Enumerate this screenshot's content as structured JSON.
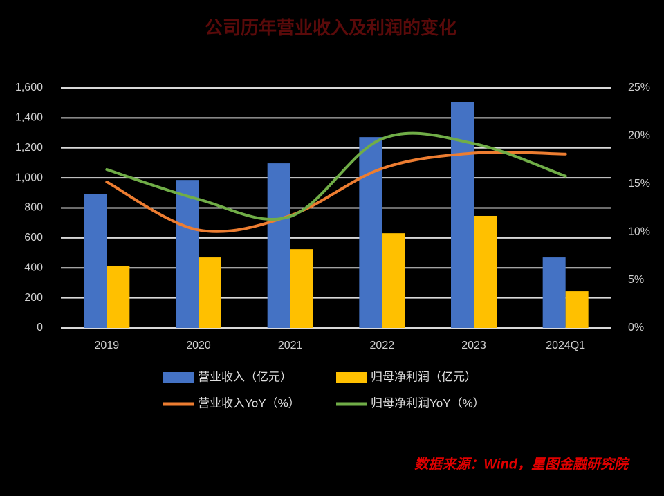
{
  "chart_data": {
    "type": "bar-line",
    "title": "公司历年营业收入及利润的变化",
    "source": "数据来源：Wind，星图金融研究院",
    "categories": [
      "2019",
      "2020",
      "2021",
      "2022",
      "2023",
      "2024Q1"
    ],
    "series": [
      {
        "name": "营业收入（亿元）",
        "type": "bar",
        "color": "#4472c4",
        "values": [
          894,
          986,
          1097,
          1272,
          1507,
          470
        ]
      },
      {
        "name": "归母净利润（亿元）",
        "type": "bar",
        "color": "#ffc000",
        "values": [
          415,
          470,
          525,
          631,
          747,
          244
        ]
      },
      {
        "name": "营业收入YoY（%）",
        "type": "line",
        "axis": "y2",
        "color": "#ed7d31",
        "values": [
          15.2,
          10.2,
          11.7,
          16.6,
          18.2,
          18.1
        ]
      },
      {
        "name": "归母净利润YoY（%）",
        "type": "line",
        "axis": "y2",
        "color": "#70ad47",
        "values": [
          16.5,
          13.4,
          11.6,
          19.7,
          19.2,
          15.8
        ]
      }
    ],
    "ylim": [
      0,
      1600
    ],
    "yticks": [
      0,
      200,
      400,
      600,
      800,
      {
        "value": 1000,
        "label": "1,000"
      },
      {
        "value": 1200,
        "label": "1,200"
      },
      {
        "value": 1400,
        "label": "1,400"
      },
      {
        "value": 1600,
        "label": "1,600"
      }
    ],
    "y2lim": [
      0,
      25
    ],
    "y2ticks": [
      {
        "value": 0,
        "label": "0%"
      },
      {
        "value": 5,
        "label": "5%"
      },
      {
        "value": 10,
        "label": "10%"
      },
      {
        "value": 15,
        "label": "15%"
      },
      {
        "value": 20,
        "label": "20%"
      },
      {
        "value": 25,
        "label": "25%"
      }
    ],
    "grid": true
  }
}
